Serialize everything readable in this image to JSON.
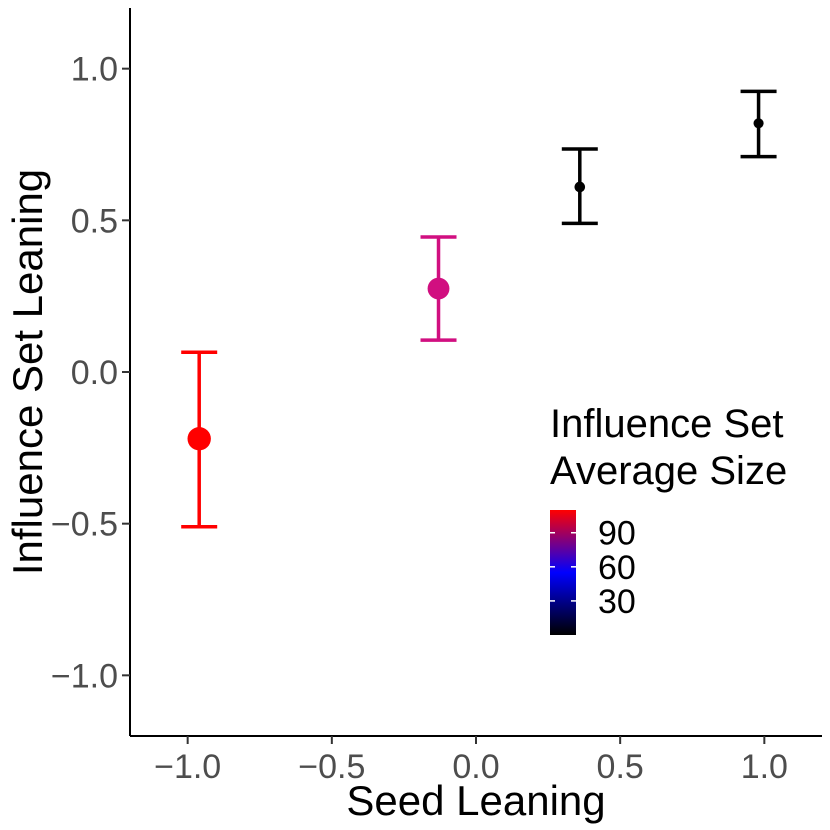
{
  "chart_data": {
    "type": "scatter",
    "title": "",
    "xlabel": "Seed Leaning",
    "ylabel": "Influence Set Leaning",
    "xlim": [
      -1.2,
      1.2
    ],
    "ylim": [
      -1.2,
      1.2
    ],
    "x_ticks": [
      -1.0,
      -0.5,
      0.0,
      0.5,
      1.0
    ],
    "x_tick_labels": [
      "−1.0",
      "−0.5",
      "0.0",
      "0.5",
      "1.0"
    ],
    "y_ticks": [
      -1.0,
      -0.5,
      0.0,
      0.5,
      1.0
    ],
    "y_tick_labels": [
      "−1.0",
      "−0.5",
      "0.0",
      "0.5",
      "1.0"
    ],
    "grid": false,
    "points": [
      {
        "x": -0.96,
        "y": -0.22,
        "ymin": -0.51,
        "ymax": 0.065,
        "avg_size": 105,
        "color": "#ff0000"
      },
      {
        "x": -0.13,
        "y": 0.275,
        "ymin": 0.105,
        "ymax": 0.445,
        "avg_size": 85,
        "color": "#d10f80"
      },
      {
        "x": 0.36,
        "y": 0.61,
        "ymin": 0.49,
        "ymax": 0.735,
        "avg_size": 3,
        "color": "#000000"
      },
      {
        "x": 0.98,
        "y": 0.82,
        "ymin": 0.71,
        "ymax": 0.925,
        "avg_size": 2,
        "color": "#000000"
      }
    ],
    "legend": {
      "title_line1": "Influence Set",
      "title_line2": "Average Size",
      "position": "center-right",
      "min": 0,
      "max": 110,
      "ticks": [
        30,
        60,
        90
      ],
      "tick_labels": [
        "30",
        "60",
        "90"
      ],
      "colors": [
        "#000000",
        "#0000ff",
        "#ff0000"
      ]
    }
  }
}
